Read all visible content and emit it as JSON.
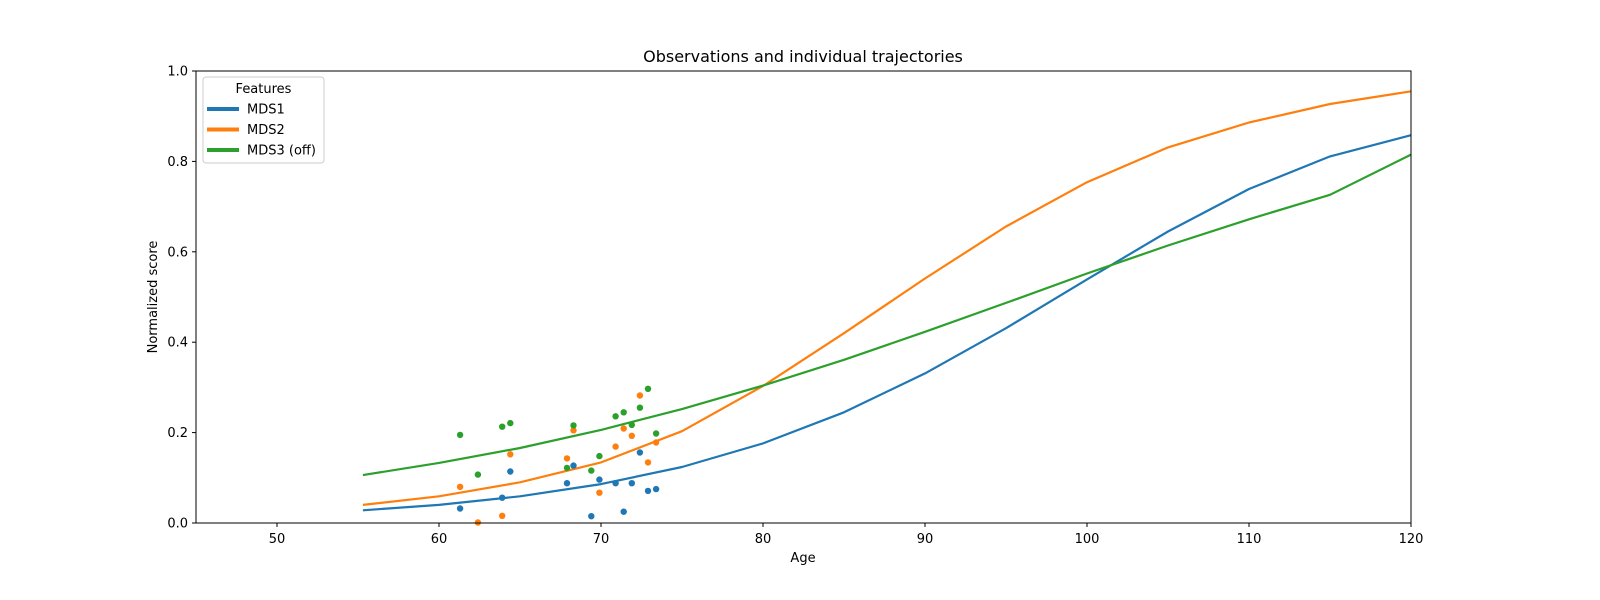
{
  "chart_data": {
    "type": "scatter",
    "title": "Observations and individual trajectories",
    "xlabel": "Age",
    "ylabel": "Normalized score",
    "xlim": [
      45,
      120
    ],
    "ylim": [
      0,
      1.0
    ],
    "x_ticks": [
      50,
      60,
      70,
      80,
      90,
      100,
      110,
      120
    ],
    "y_ticks": [
      0.0,
      0.2,
      0.4,
      0.6,
      0.8,
      1.0
    ],
    "x_tick_labels": [
      "50",
      "60",
      "70",
      "80",
      "90",
      "100",
      "110",
      "120"
    ],
    "y_tick_labels": [
      "0.0",
      "0.2",
      "0.4",
      "0.6",
      "0.8",
      "1.0"
    ],
    "grid": false,
    "legend": {
      "title": "Features",
      "placement": "top-left",
      "entries": [
        "MDS1",
        "MDS2",
        "MDS3 (off)"
      ]
    },
    "series": [
      {
        "name": "MDS1",
        "color": "#1f77b4",
        "points": [
          [
            61.3,
            0.032
          ],
          [
            63.9,
            0.056
          ],
          [
            64.4,
            0.114
          ],
          [
            67.9,
            0.088
          ],
          [
            68.3,
            0.127
          ],
          [
            69.4,
            0.015
          ],
          [
            69.9,
            0.096
          ],
          [
            70.9,
            0.088
          ],
          [
            71.4,
            0.025
          ],
          [
            71.9,
            0.088
          ],
          [
            72.4,
            0.156
          ],
          [
            72.9,
            0.071
          ],
          [
            73.4,
            0.075
          ]
        ],
        "curve": [
          [
            55.3,
            0.028
          ],
          [
            60,
            0.04
          ],
          [
            65,
            0.059
          ],
          [
            70,
            0.086
          ],
          [
            75,
            0.124
          ],
          [
            80,
            0.176
          ],
          [
            85,
            0.245
          ],
          [
            90,
            0.331
          ],
          [
            95,
            0.431
          ],
          [
            100,
            0.539
          ],
          [
            105,
            0.645
          ],
          [
            110,
            0.739
          ],
          [
            115,
            0.811
          ],
          [
            120,
            0.858
          ]
        ]
      },
      {
        "name": "MDS2",
        "color": "#ff7f0e",
        "points": [
          [
            61.3,
            0.08
          ],
          [
            62.4,
            0.001
          ],
          [
            63.9,
            0.016
          ],
          [
            64.4,
            0.152
          ],
          [
            67.9,
            0.143
          ],
          [
            68.3,
            0.205
          ],
          [
            69.9,
            0.067
          ],
          [
            70.9,
            0.169
          ],
          [
            71.4,
            0.209
          ],
          [
            71.9,
            0.193
          ],
          [
            72.4,
            0.282
          ],
          [
            72.9,
            0.134
          ],
          [
            73.4,
            0.178
          ]
        ],
        "curve": [
          [
            55.3,
            0.04
          ],
          [
            60,
            0.059
          ],
          [
            65,
            0.09
          ],
          [
            70,
            0.134
          ],
          [
            75,
            0.203
          ],
          [
            80,
            0.303
          ],
          [
            85,
            0.42
          ],
          [
            90,
            0.541
          ],
          [
            95,
            0.656
          ],
          [
            100,
            0.754
          ],
          [
            105,
            0.831
          ],
          [
            110,
            0.886
          ],
          [
            115,
            0.927
          ],
          [
            120,
            0.955
          ]
        ]
      },
      {
        "name": "MDS3 (off)",
        "color": "#2ca02c",
        "points": [
          [
            61.3,
            0.195
          ],
          [
            62.4,
            0.107
          ],
          [
            63.9,
            0.213
          ],
          [
            64.4,
            0.221
          ],
          [
            67.9,
            0.122
          ],
          [
            68.3,
            0.216
          ],
          [
            69.4,
            0.116
          ],
          [
            69.9,
            0.148
          ],
          [
            70.9,
            0.236
          ],
          [
            71.4,
            0.245
          ],
          [
            71.9,
            0.217
          ],
          [
            72.4,
            0.255
          ],
          [
            72.9,
            0.297
          ],
          [
            73.4,
            0.198
          ]
        ],
        "curve": [
          [
            55.3,
            0.106
          ],
          [
            60,
            0.133
          ],
          [
            65,
            0.166
          ],
          [
            70,
            0.206
          ],
          [
            75,
            0.252
          ],
          [
            80,
            0.304
          ],
          [
            85,
            0.361
          ],
          [
            90,
            0.423
          ],
          [
            95,
            0.487
          ],
          [
            100,
            0.552
          ],
          [
            105,
            0.614
          ],
          [
            110,
            0.672
          ],
          [
            115,
            0.726
          ],
          [
            120,
            0.815
          ]
        ]
      }
    ]
  }
}
